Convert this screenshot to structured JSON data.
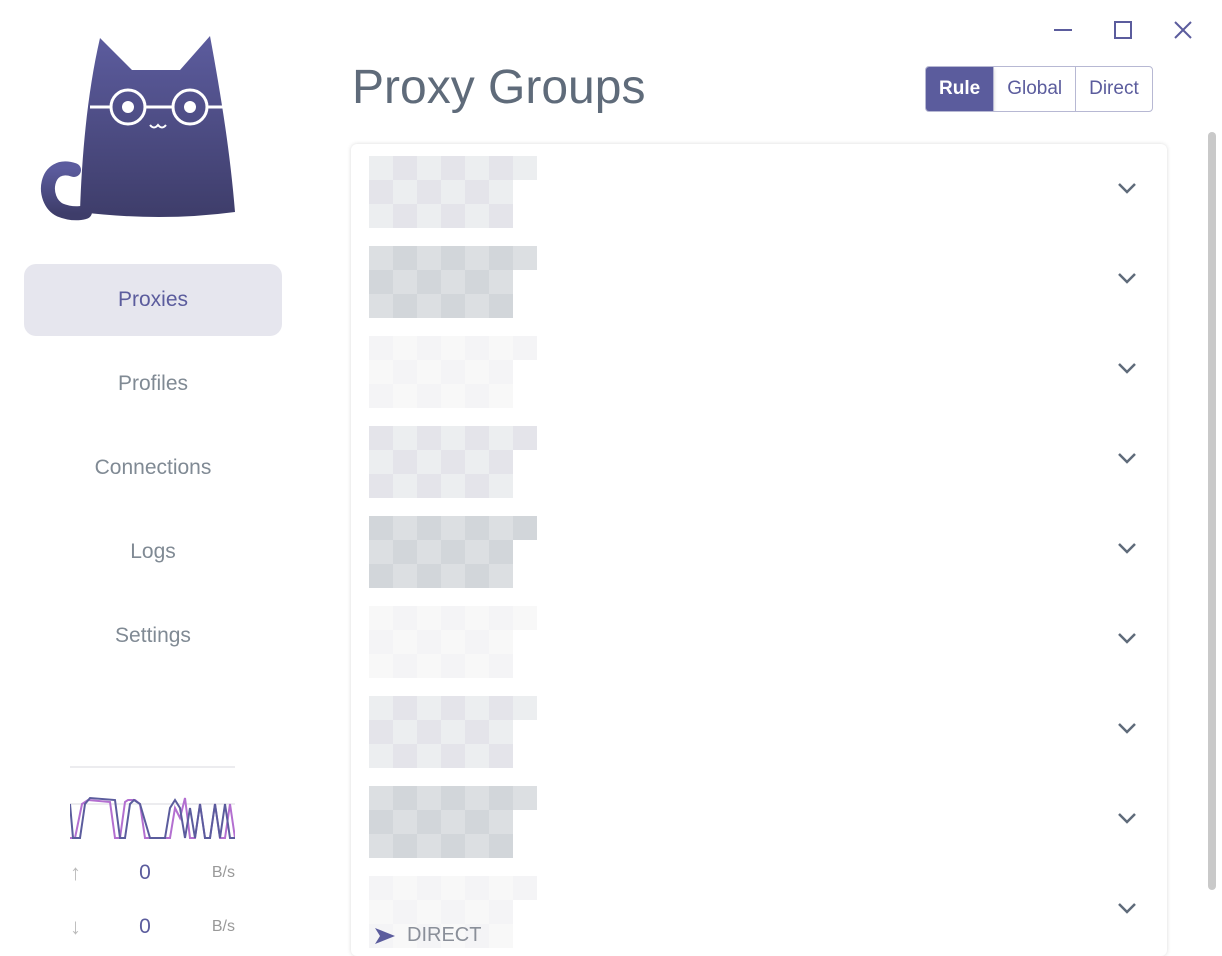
{
  "window": {
    "minimize_icon": "minimize-icon",
    "maximize_icon": "maximize-icon",
    "close_icon": "close-icon"
  },
  "sidebar": {
    "items": [
      {
        "label": "Proxies",
        "active": true
      },
      {
        "label": "Profiles"
      },
      {
        "label": "Connections"
      },
      {
        "label": "Logs"
      },
      {
        "label": "Settings"
      }
    ]
  },
  "traffic": {
    "upload": {
      "value": "0",
      "unit": "B/s"
    },
    "download": {
      "value": "0",
      "unit": "B/s"
    },
    "colors": {
      "upload": "#b36fd0",
      "download": "#5b5c9d"
    }
  },
  "header": {
    "title": "Proxy Groups",
    "modes": [
      "Rule",
      "Global",
      "Direct"
    ],
    "selected_mode": "Rule"
  },
  "groups_visible": 9,
  "last_group_selected": "DIRECT",
  "colors": {
    "accent": "#5b5c9d"
  }
}
